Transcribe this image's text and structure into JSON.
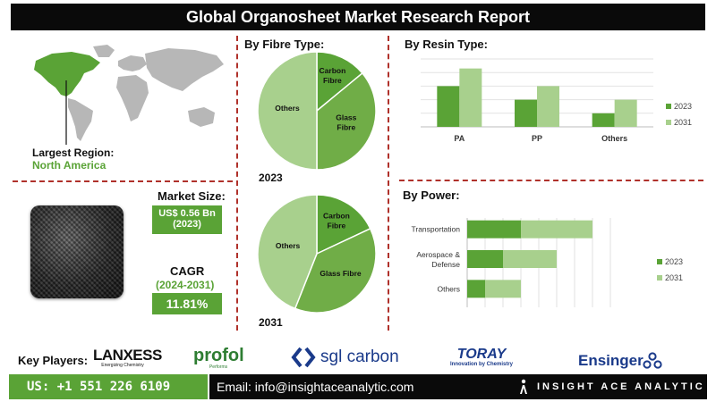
{
  "title": "Global Organosheet Market Research Report",
  "region": {
    "largest_label": "Largest Region:",
    "largest_value": "North America"
  },
  "market_size": {
    "label": "Market Size:",
    "value": "US$ 0.56 Bn",
    "year": "(2023)"
  },
  "cagr": {
    "label": "CAGR",
    "period": "(2024-2031)",
    "value": "11.81%"
  },
  "colors": {
    "dark_green": "#5aa336",
    "light_green": "#a8d08d",
    "mid_green": "#70ad47",
    "accent_red": "#b0312b"
  },
  "key_players": {
    "label": "Key Players:",
    "items": [
      {
        "name": "LANXESS",
        "tagline": "Energizing Chemistry"
      },
      {
        "name": "profol",
        "tagline": "Performs"
      },
      {
        "name": "sgl carbon",
        "tagline": ""
      },
      {
        "name": "TORAY",
        "tagline": "Innovation by Chemistry"
      },
      {
        "name": "Ensinger",
        "tagline": ""
      }
    ]
  },
  "footer": {
    "phone": "US: +1 551 226 6109",
    "email": "Email: info@insightaceanalytic.com",
    "brand": "INSIGHT ACE ANALYTIC"
  },
  "chart_data": [
    {
      "type": "pie",
      "title": "By Fibre Type:",
      "caption": "2023",
      "slices": [
        {
          "label": "Carbon Fibre",
          "value": 14,
          "color": "#5aa336"
        },
        {
          "label": "Glass Fibre",
          "value": 36,
          "color": "#70ad47"
        },
        {
          "label": "Others",
          "value": 50,
          "color": "#a8d08d"
        }
      ]
    },
    {
      "type": "pie",
      "title": "",
      "caption": "2031",
      "slices": [
        {
          "label": "Carbon Fibre",
          "value": 18,
          "color": "#5aa336"
        },
        {
          "label": "Glass Fibre",
          "value": 38,
          "color": "#70ad47"
        },
        {
          "label": "Others",
          "value": 44,
          "color": "#a8d08d"
        }
      ]
    },
    {
      "type": "bar",
      "title": "By Resin Type:",
      "categories": [
        "PA",
        "PP",
        "Others"
      ],
      "ylim": [
        0,
        5
      ],
      "grid": true,
      "legend": "right",
      "series": [
        {
          "name": "2023",
          "values": [
            3.0,
            2.0,
            1.0
          ],
          "color": "#5aa336"
        },
        {
          "name": "2031",
          "values": [
            4.3,
            3.0,
            2.0
          ],
          "color": "#a8d08d"
        }
      ]
    },
    {
      "type": "bar",
      "orientation": "horizontal",
      "stacked": true,
      "title": "By Power:",
      "categories": [
        "Transportation",
        "Aerospace & Defense",
        "Others"
      ],
      "xlim": [
        0,
        8
      ],
      "grid": true,
      "legend": "right",
      "series": [
        {
          "name": "2023",
          "values": [
            3.0,
            2.0,
            1.0
          ],
          "color": "#5aa336"
        },
        {
          "name": "2031",
          "values": [
            4.0,
            3.0,
            2.0
          ],
          "color": "#a8d08d"
        }
      ]
    }
  ]
}
